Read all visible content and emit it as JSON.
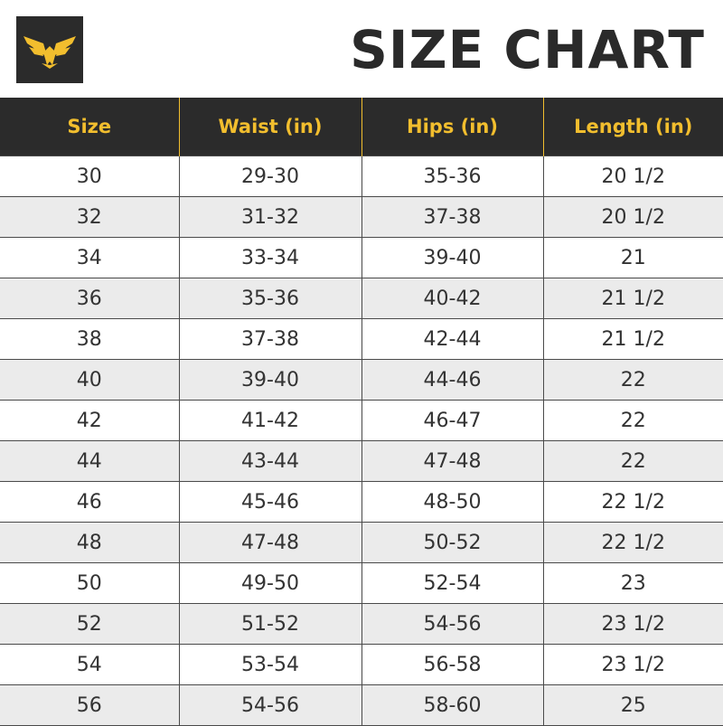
{
  "header": {
    "title": "SIZE CHART"
  },
  "table": {
    "columns": [
      "Size",
      "Waist (in)",
      "Hips (in)",
      "Length (in)"
    ],
    "rows": [
      [
        "30",
        "29-30",
        "35-36",
        "20 1/2"
      ],
      [
        "32",
        "31-32",
        "37-38",
        "20 1/2"
      ],
      [
        "34",
        "33-34",
        "39-40",
        "21"
      ],
      [
        "36",
        "35-36",
        "40-42",
        "21 1/2"
      ],
      [
        "38",
        "37-38",
        "42-44",
        "21 1/2"
      ],
      [
        "40",
        "39-40",
        "44-46",
        "22"
      ],
      [
        "42",
        "41-42",
        "46-47",
        "22"
      ],
      [
        "44",
        "43-44",
        "47-48",
        "22"
      ],
      [
        "46",
        "45-46",
        "48-50",
        "22 1/2"
      ],
      [
        "48",
        "47-48",
        "50-52",
        "22 1/2"
      ],
      [
        "50",
        "49-50",
        "52-54",
        "23"
      ],
      [
        "52",
        "51-52",
        "54-56",
        "23 1/2"
      ],
      [
        "54",
        "53-54",
        "56-58",
        "23 1/2"
      ],
      [
        "56",
        "54-56",
        "58-60",
        "25"
      ]
    ]
  }
}
